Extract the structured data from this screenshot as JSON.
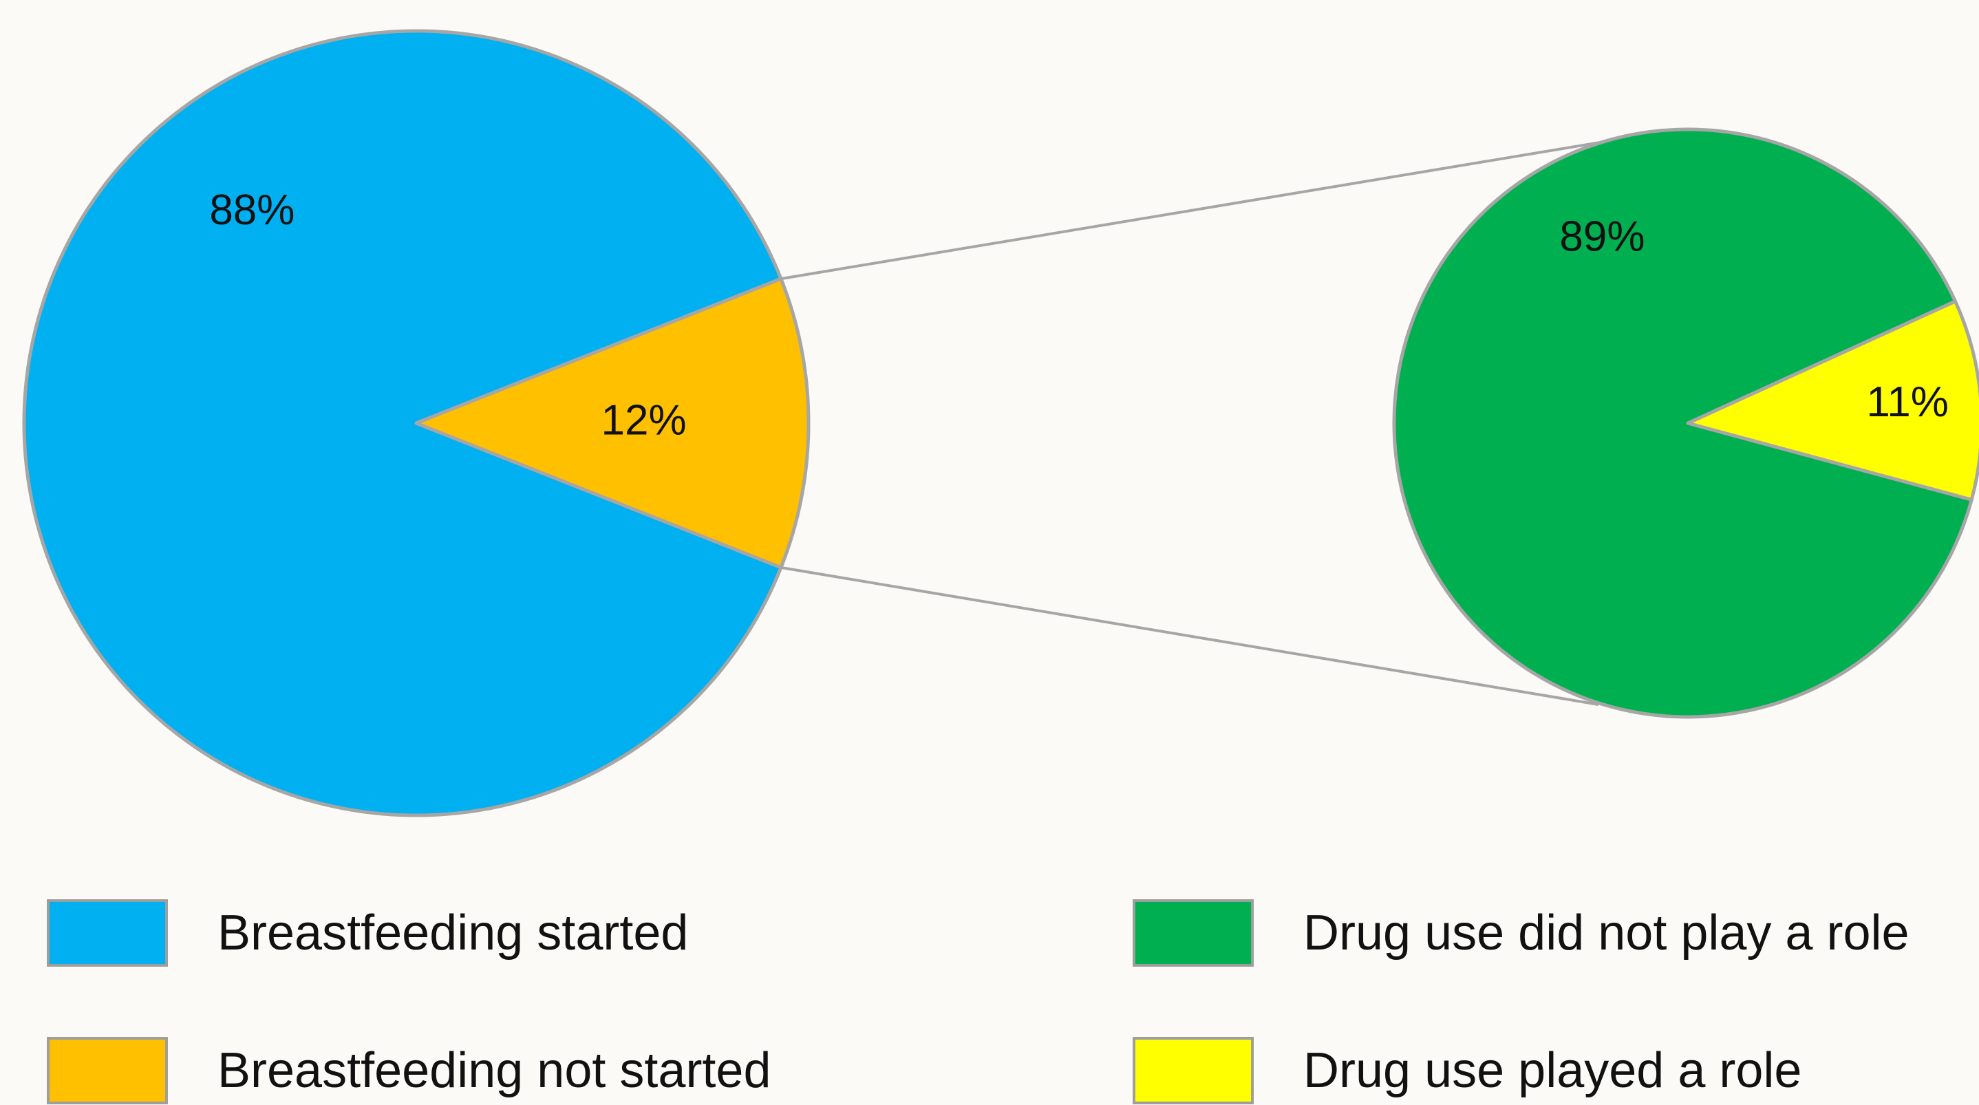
{
  "chart_data": {
    "type": "pie",
    "variant": "pie-of-pie",
    "pies": [
      {
        "slices": [
          {
            "label": "Breastfeeding started",
            "value": 88,
            "display": "88%",
            "color": "#00b0f0"
          },
          {
            "label": "Breastfeeding not started",
            "value": 12,
            "display": "12%",
            "color": "#ffc000",
            "exploded_into_secondary": true
          }
        ]
      },
      {
        "breakdown_of": "Breastfeeding not started",
        "slices": [
          {
            "label": "Drug use did not play a role",
            "value": 89,
            "display": "89%",
            "color": "#00b050"
          },
          {
            "label": "Drug use played a role",
            "value": 11,
            "display": "11%",
            "color": "#ffff00"
          }
        ]
      }
    ],
    "legend": {
      "placement": "bottom",
      "items": [
        {
          "label": "Breastfeeding started",
          "color": "#00b0f0"
        },
        {
          "label": "Breastfeeding not started",
          "color": "#ffc000"
        },
        {
          "label": "Drug use did not play a role",
          "color": "#00b050"
        },
        {
          "label": "Drug use played a role",
          "color": "#ffff00"
        }
      ]
    },
    "connector_color": "#a6a6a6",
    "slice_border_color": "#a6a6a6"
  }
}
